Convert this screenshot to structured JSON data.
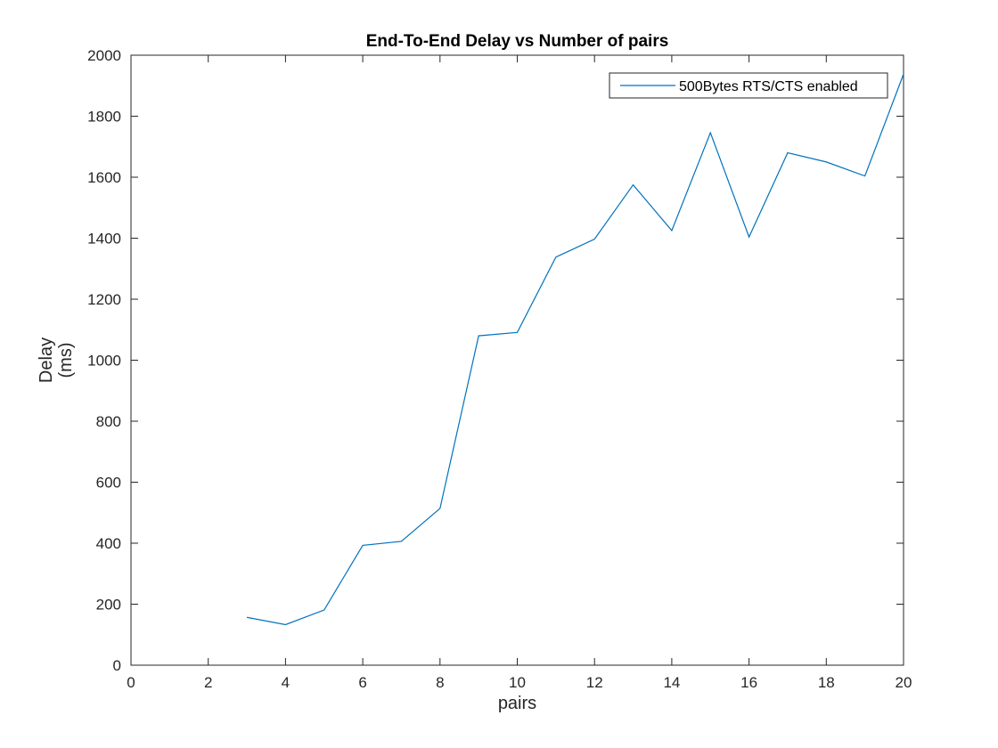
{
  "chart_data": {
    "type": "line",
    "title": "End-To-End Delay vs Number of pairs",
    "xlabel": "pairs",
    "ylabel": [
      "Delay",
      "(ms)"
    ],
    "xlim": [
      0,
      20
    ],
    "ylim": [
      0,
      2000
    ],
    "xticks": [
      0,
      2,
      4,
      6,
      8,
      10,
      12,
      14,
      16,
      18,
      20
    ],
    "yticks": [
      0,
      200,
      400,
      600,
      800,
      1000,
      1200,
      1400,
      1600,
      1800,
      2000
    ],
    "grid": false,
    "legend_position": "top-right",
    "series": [
      {
        "name": "500Bytes RTS/CTS enabled",
        "color": "#0072BD",
        "x": [
          3,
          4,
          5,
          6,
          7,
          8,
          9,
          10,
          11,
          12,
          13,
          14,
          15,
          16,
          17,
          18,
          19,
          20
        ],
        "y": [
          157,
          133,
          181,
          393,
          406,
          514,
          1080,
          1091,
          1338,
          1397,
          1575,
          1425,
          1746,
          1404,
          1680,
          1650,
          1604,
          1938
        ]
      }
    ]
  }
}
